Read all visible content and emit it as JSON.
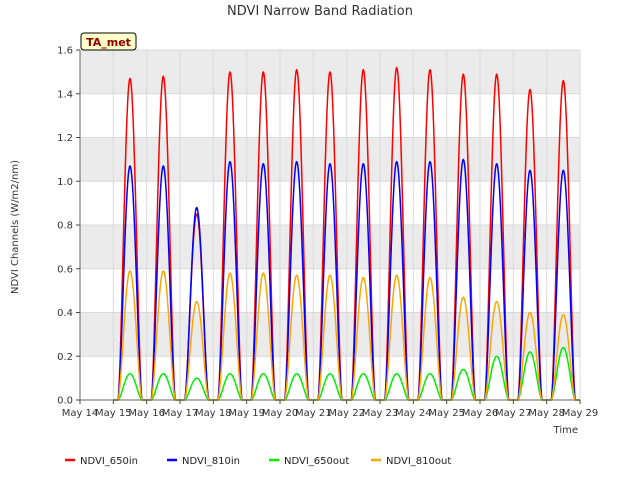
{
  "chart_data": {
    "type": "line",
    "title": "NDVI Narrow Band Radiation",
    "xlabel": "Time",
    "ylabel": "NDVI Channels (W/m2/nm)",
    "ylim": [
      0,
      1.6
    ],
    "yticks": [
      "0.0",
      "0.2",
      "0.4",
      "0.6",
      "0.8",
      "1.0",
      "1.2",
      "1.4",
      "1.6"
    ],
    "xticks": [
      "May 14",
      "May 15",
      "May 16",
      "May 17",
      "May 18",
      "May 19",
      "May 20",
      "May 21",
      "May 22",
      "May 23",
      "May 24",
      "May 25",
      "May 26",
      "May 27",
      "May 28",
      "May 29"
    ],
    "x_start": "May 14",
    "grid": true,
    "legend_position": "bottom",
    "badge": "TA_met",
    "colors": {
      "plot_band": "#ebebeb",
      "grid": "#d9d9d9",
      "badge_fill": "#ffffc8",
      "badge_text": "#8b0000"
    },
    "series": [
      {
        "name": "NDVI_650in",
        "color": "#ff0000",
        "peaks": [
          1.47,
          1.48,
          0.85,
          1.5,
          1.5,
          1.51,
          1.5,
          1.51,
          1.52,
          1.51,
          1.49,
          1.49,
          1.42,
          1.46
        ]
      },
      {
        "name": "NDVI_810in",
        "color": "#0000ff",
        "peaks": [
          1.07,
          1.07,
          0.88,
          1.09,
          1.08,
          1.09,
          1.08,
          1.08,
          1.09,
          1.09,
          1.1,
          1.08,
          1.05,
          1.05
        ]
      },
      {
        "name": "NDVI_650out",
        "color": "#00ee00",
        "peaks": [
          0.12,
          0.12,
          0.1,
          0.12,
          0.12,
          0.12,
          0.12,
          0.12,
          0.12,
          0.12,
          0.14,
          0.2,
          0.22,
          0.24
        ]
      },
      {
        "name": "NDVI_810out",
        "color": "#ffa500",
        "peaks": [
          0.59,
          0.59,
          0.45,
          0.58,
          0.58,
          0.57,
          0.57,
          0.56,
          0.57,
          0.56,
          0.47,
          0.45,
          0.4,
          0.39
        ]
      }
    ]
  }
}
